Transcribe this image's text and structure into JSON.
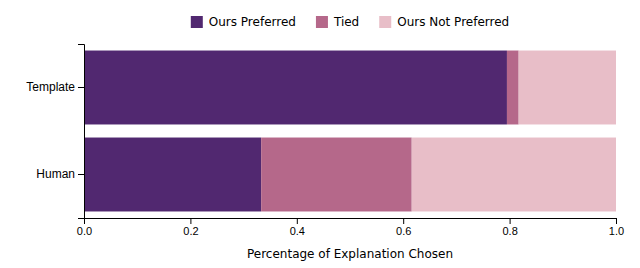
{
  "chart_data": {
    "type": "bar",
    "orientation": "horizontal",
    "stacked": true,
    "categories": [
      "Template",
      "Human"
    ],
    "series": [
      {
        "name": "Ours Preferred",
        "color": "#512870",
        "values": [
          0.795,
          0.333
        ]
      },
      {
        "name": "Tied",
        "color": "#B5688A",
        "values": [
          0.022,
          0.283
        ]
      },
      {
        "name": "Ours Not Preferred",
        "color": "#E8BEC8",
        "values": [
          0.183,
          0.384
        ]
      }
    ],
    "xlabel": "Percentage of Explanation Chosen",
    "xlim": [
      0.0,
      1.0
    ],
    "xticks": [
      {
        "value": 0.0,
        "label": "0.0"
      },
      0.2,
      0.4,
      0.6,
      0.8,
      {
        "value": 1.0,
        "label": "1.0"
      }
    ],
    "legend": "top",
    "grid": false
  }
}
